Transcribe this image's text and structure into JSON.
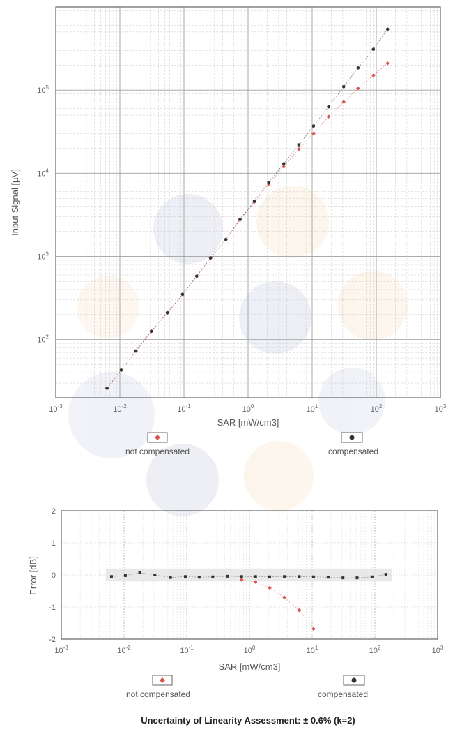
{
  "colors": {
    "compensated": "#333333",
    "not_compensated": "#d9534f",
    "grid": "#c8c8c8",
    "grid_major": "#a0a0a0",
    "axis": "#444444"
  },
  "caption": "Uncertainty of Linearity Assessment: ± 0.6% (k=2)",
  "chart_data": [
    {
      "type": "scatter",
      "xscale": "log",
      "yscale": "log",
      "xlabel": "SAR [mW/cm3]",
      "ylabel": "Input Signal [µV]",
      "xlim": [
        0.001,
        1000
      ],
      "ylim": [
        20,
        1000000
      ],
      "x_ticks": [
        {
          "value": 0.001,
          "base": "10",
          "exp": "-3"
        },
        {
          "value": 0.01,
          "base": "10",
          "exp": "-2"
        },
        {
          "value": 0.1,
          "base": "10",
          "exp": "-1"
        },
        {
          "value": 1,
          "base": "10",
          "exp": "0"
        },
        {
          "value": 10,
          "base": "10",
          "exp": "1"
        },
        {
          "value": 100,
          "base": "10",
          "exp": "2"
        },
        {
          "value": 1000,
          "base": "10",
          "exp": "3"
        }
      ],
      "y_ticks": [
        {
          "value": 100,
          "base": "10",
          "exp": "2"
        },
        {
          "value": 1000,
          "base": "10",
          "exp": "3"
        },
        {
          "value": 10000,
          "base": "10",
          "exp": "4"
        },
        {
          "value": 100000,
          "base": "10",
          "exp": "5"
        }
      ],
      "grid": true,
      "legend": {
        "position": "bottom",
        "entries": [
          "not compensated",
          "compensated"
        ]
      },
      "series": [
        {
          "name": "compensated",
          "marker": "circle",
          "x": [
            0.0063,
            0.0105,
            0.0178,
            0.031,
            0.055,
            0.095,
            0.158,
            0.26,
            0.45,
            0.75,
            1.25,
            2.1,
            3.6,
            6.2,
            10.5,
            18,
            31,
            52,
            90,
            150
          ],
          "y": [
            26,
            43,
            73,
            126,
            210,
            350,
            580,
            960,
            1600,
            2800,
            4600,
            7800,
            13000,
            22000,
            37000,
            63000,
            110000,
            185000,
            310000,
            540000
          ]
        },
        {
          "name": "not compensated",
          "marker": "diamond",
          "x": [
            0.0063,
            0.0105,
            0.0178,
            0.031,
            0.055,
            0.095,
            0.158,
            0.26,
            0.45,
            0.75,
            1.25,
            2.1,
            3.6,
            6.2,
            10.5,
            18,
            31,
            52,
            90,
            150
          ],
          "y": [
            26,
            43,
            73,
            126,
            210,
            350,
            580,
            960,
            1600,
            2750,
            4500,
            7400,
            12000,
            19500,
            30000,
            48000,
            72000,
            105000,
            150000,
            210000
          ]
        }
      ]
    },
    {
      "type": "scatter",
      "xscale": "log",
      "xlabel": "SAR [mW/cm3]",
      "ylabel": "Error [dB]",
      "xlim": [
        0.001,
        1000
      ],
      "ylim": [
        -2,
        2
      ],
      "x_ticks": [
        {
          "value": 0.001,
          "base": "10",
          "exp": "-3"
        },
        {
          "value": 0.01,
          "base": "10",
          "exp": "-2"
        },
        {
          "value": 0.1,
          "base": "10",
          "exp": "-1"
        },
        {
          "value": 1,
          "base": "10",
          "exp": "0"
        },
        {
          "value": 10,
          "base": "10",
          "exp": "1"
        },
        {
          "value": 100,
          "base": "10",
          "exp": "2"
        },
        {
          "value": 1000,
          "base": "10",
          "exp": "3"
        }
      ],
      "y_ticks": [
        {
          "value": 2,
          "label": "2"
        },
        {
          "value": 1,
          "label": "1"
        },
        {
          "value": 0,
          "label": "0"
        },
        {
          "value": -1,
          "label": "-1"
        },
        {
          "value": -2,
          "label": "-2"
        }
      ],
      "uncertainty_band": [
        -0.2,
        0.2
      ],
      "grid": true,
      "legend": {
        "position": "bottom",
        "entries": [
          "not compensated",
          "compensated"
        ]
      },
      "series": [
        {
          "name": "compensated",
          "marker": "square",
          "x": [
            0.0063,
            0.0105,
            0.0178,
            0.031,
            0.055,
            0.095,
            0.158,
            0.26,
            0.45,
            0.75,
            1.25,
            2.1,
            3.6,
            6.2,
            10.5,
            18,
            31,
            52,
            90,
            150
          ],
          "y": [
            -0.05,
            -0.02,
            0.07,
            0.0,
            -0.08,
            -0.05,
            -0.07,
            -0.06,
            -0.04,
            -0.05,
            -0.05,
            -0.06,
            -0.05,
            -0.05,
            -0.06,
            -0.07,
            -0.09,
            -0.09,
            -0.06,
            0.02
          ]
        },
        {
          "name": "not compensated",
          "marker": "diamond",
          "x": [
            0.75,
            1.25,
            2.1,
            3.6,
            6.2,
            10.5
          ],
          "y": [
            -0.15,
            -0.22,
            -0.4,
            -0.7,
            -1.1,
            -1.68
          ]
        }
      ]
    }
  ]
}
